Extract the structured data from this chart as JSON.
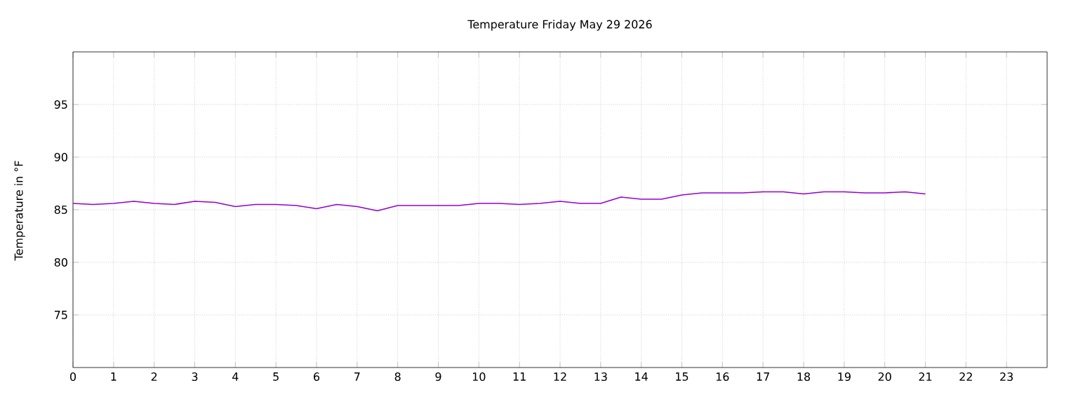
{
  "chart_data": {
    "type": "line",
    "title": "Temperature Friday May 29 2026",
    "ylabel": "Temperature in °F",
    "x": [
      0,
      0.5,
      1,
      1.5,
      2,
      2.5,
      3,
      3.5,
      4,
      4.5,
      5,
      5.5,
      6,
      6.5,
      7,
      7.5,
      8,
      8.5,
      9,
      9.5,
      10,
      10.5,
      11,
      11.5,
      12,
      12.5,
      13,
      13.5,
      14,
      14.5,
      15,
      15.5,
      16,
      16.5,
      17,
      17.5,
      18,
      18.5,
      19,
      19.5,
      20,
      20.5,
      21
    ],
    "series": [
      {
        "color": "#9400d3",
        "values": [
          85.6,
          85.5,
          85.6,
          85.8,
          85.6,
          85.5,
          85.8,
          85.7,
          85.3,
          85.5,
          85.5,
          85.4,
          85.1,
          85.5,
          85.3,
          84.9,
          85.4,
          85.4,
          85.4,
          85.4,
          85.6,
          85.6,
          85.5,
          85.6,
          85.8,
          85.6,
          85.6,
          86.2,
          86.0,
          86.0,
          86.4,
          86.6,
          86.6,
          86.6,
          86.7,
          86.7,
          86.5,
          86.7,
          86.7,
          86.6,
          86.6,
          86.7,
          86.5
        ]
      }
    ],
    "xlim": [
      0,
      24
    ],
    "xticks": [
      0,
      1,
      2,
      3,
      4,
      5,
      6,
      7,
      8,
      9,
      10,
      11,
      12,
      13,
      14,
      15,
      16,
      17,
      18,
      19,
      20,
      21,
      22,
      23
    ],
    "ylim": [
      70,
      100
    ],
    "yticks": [
      75,
      80,
      85,
      90,
      95
    ],
    "grid": true,
    "marker": "none",
    "line_style": "solid"
  }
}
